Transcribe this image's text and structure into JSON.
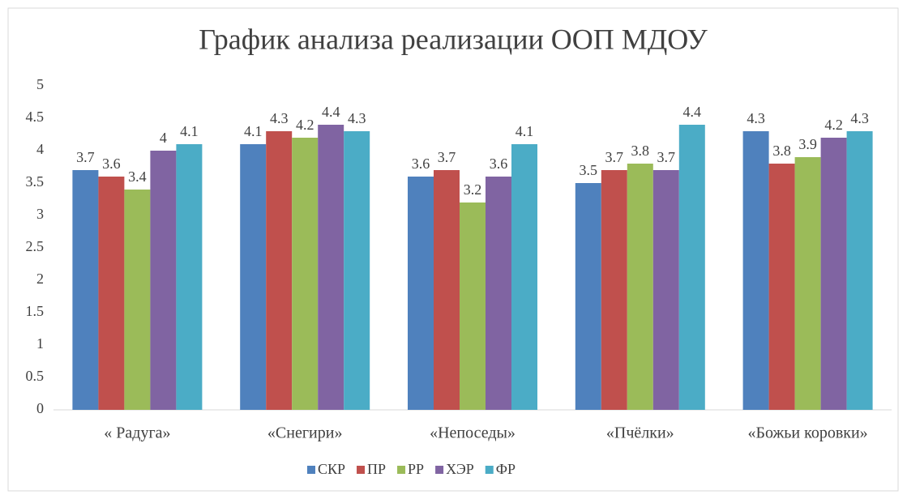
{
  "chart_data": {
    "type": "bar",
    "title": "График анализа реализации ООП МДОУ",
    "categories": [
      "« Радуга»",
      "«Снегири»",
      "«Непоседы»",
      "«Пчёлки»",
      "«Божьи коровки»"
    ],
    "series": [
      {
        "name": "СКР",
        "color": "#4f81bd",
        "values": [
          3.7,
          4.1,
          3.6,
          3.5,
          4.3
        ]
      },
      {
        "name": "ПР",
        "color": "#c0504d",
        "values": [
          3.6,
          4.3,
          3.7,
          3.7,
          3.8
        ]
      },
      {
        "name": "РР",
        "color": "#9bbb59",
        "values": [
          3.4,
          4.2,
          3.2,
          3.8,
          3.9
        ]
      },
      {
        "name": "ХЭР",
        "color": "#8064a2",
        "values": [
          4,
          4.4,
          3.6,
          3.7,
          4.2
        ]
      },
      {
        "name": "ФР",
        "color": "#4bacc6",
        "values": [
          4.1,
          4.3,
          4.1,
          4.4,
          4.3
        ]
      }
    ],
    "ylim": [
      0,
      5
    ],
    "yticks": [
      0,
      0.5,
      1,
      1.5,
      2,
      2.5,
      3,
      3.5,
      4,
      4.5,
      5
    ],
    "grid": false,
    "legend": "bottom"
  }
}
